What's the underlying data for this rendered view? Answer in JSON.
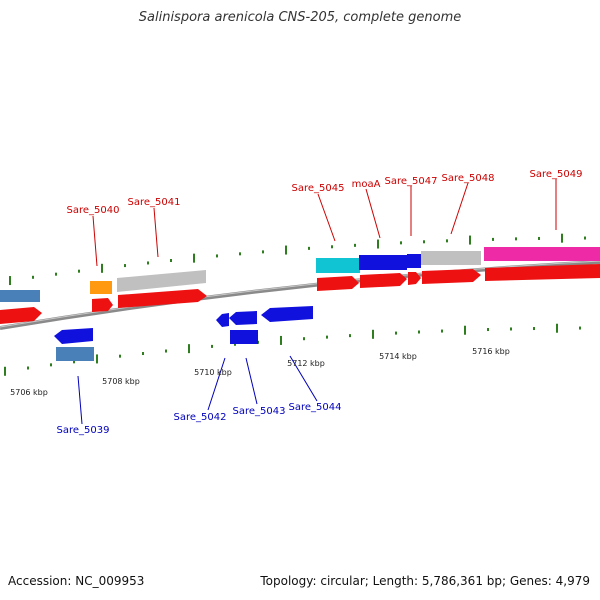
{
  "title": "Salinispora arenicola CNS-205, complete genome",
  "footer": {
    "accession": "Accession: NC_009953",
    "summary": "Topology: circular; Length: 5,786,361 bp; Genes: 4,979"
  },
  "colors": {
    "backbone": "#8a8a8a",
    "tick": "#2e7d1f",
    "forward_label": "#cc0000",
    "reverse_label": "#0000bb",
    "cds": "#ee1111",
    "gene_blue": "#1111dd",
    "gene_steel": "#4a80b8",
    "gene_grey": "#c0c0c0",
    "gene_orange": "#ff9910",
    "gene_cyan": "#10c4d4",
    "gene_magenta": "#ee2aa6"
  },
  "kbp_labels": [
    "5706 kbp",
    "5708 kbp",
    "5710 kbp",
    "5712 kbp",
    "5714 kbp",
    "5716 kbp"
  ],
  "forward_gene_labels": [
    "Sare_5040",
    "Sare_5041",
    "Sare_5045",
    "moaA",
    "Sare_5047",
    "Sare_5048",
    "Sare_5049"
  ],
  "reverse_gene_labels": [
    "Sare_5039",
    "Sare_5042",
    "Sare_5043",
    "Sare_5044"
  ]
}
